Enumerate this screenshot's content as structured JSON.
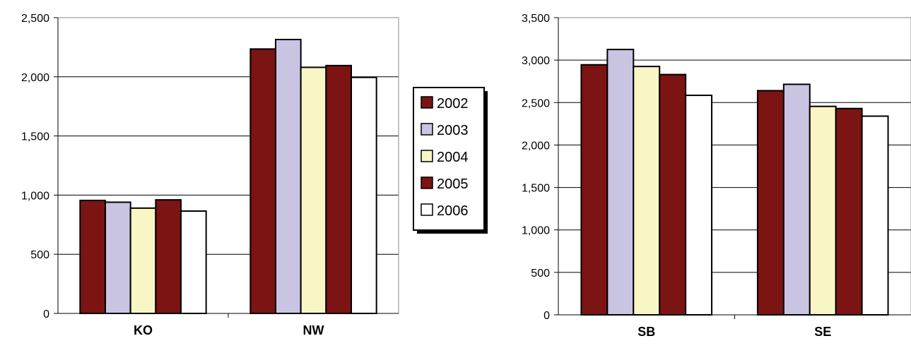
{
  "colors": {
    "2002": "#7b1412",
    "2003": "#c8c4e2",
    "2004": "#f8f6c4",
    "2005": "#7b1412",
    "2006": "#ffffff",
    "grid": "#000000",
    "band": "#c8c4e2"
  },
  "legend": {
    "items": [
      "2002",
      "2003",
      "2004",
      "2005",
      "2006"
    ]
  },
  "chart_data": [
    {
      "type": "bar",
      "categories": [
        "KO",
        "NW"
      ],
      "series": [
        {
          "name": "2002",
          "values": [
            955,
            2235
          ]
        },
        {
          "name": "2003",
          "values": [
            940,
            2315
          ]
        },
        {
          "name": "2004",
          "values": [
            890,
            2080
          ]
        },
        {
          "name": "2005",
          "values": [
            960,
            2095
          ]
        },
        {
          "name": "2006",
          "values": [
            865,
            1995
          ]
        }
      ],
      "ylim": [
        0,
        2500
      ],
      "yticks": [
        "0",
        "500",
        "1,000",
        "1,500",
        "2,000",
        "2,500"
      ],
      "title": "",
      "xlabel": "",
      "ylabel": "",
      "grid": true
    },
    {
      "type": "bar",
      "categories": [
        "SB",
        "SE"
      ],
      "series": [
        {
          "name": "2002",
          "values": [
            2945,
            2640
          ]
        },
        {
          "name": "2003",
          "values": [
            3125,
            2715
          ]
        },
        {
          "name": "2004",
          "values": [
            2925,
            2455
          ]
        },
        {
          "name": "2005",
          "values": [
            2830,
            2430
          ]
        },
        {
          "name": "2006",
          "values": [
            2585,
            2340
          ]
        }
      ],
      "ylim": [
        0,
        3500
      ],
      "yticks": [
        "0",
        "500",
        "1,000",
        "1,500",
        "2,000",
        "2,500",
        "3,000",
        "3,500"
      ],
      "title": "",
      "xlabel": "",
      "ylabel": "",
      "grid": true
    }
  ]
}
